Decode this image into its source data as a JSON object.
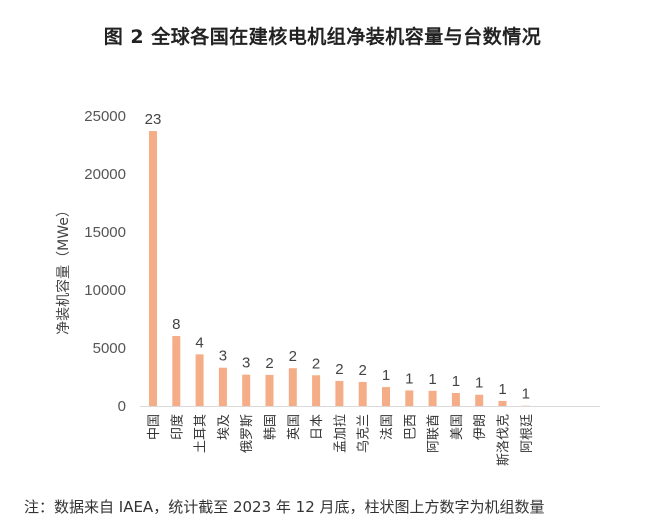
{
  "page": {
    "title": "图 2 全球各国在建核电机组净装机容量与台数情况",
    "note": "注：数据来自 IAEA，统计截至 2023 年 12 月底，柱状图上方数字为机组数量"
  },
  "chart_data": {
    "type": "bar",
    "title": "图 2 全球各国在建核电机组净装机容量与台数情况",
    "xlabel": "",
    "ylabel": "净装机容量（MWe）",
    "ylim": [
      0,
      25000
    ],
    "yticks": [
      0,
      5000,
      10000,
      15000,
      20000,
      25000
    ],
    "grid": false,
    "legend": "none",
    "categories": [
      "中国",
      "印度",
      "土耳其",
      "埃及",
      "俄罗斯",
      "韩国",
      "英国",
      "日本",
      "孟加拉",
      "乌克兰",
      "法国",
      "巴西",
      "阿联酋",
      "美国",
      "伊朗",
      "斯洛伐克",
      "阿根廷"
    ],
    "values": [
      23700,
      6030,
      4450,
      3300,
      2700,
      2680,
      3260,
      2650,
      2160,
      2070,
      1630,
      1340,
      1310,
      1120,
      970,
      440,
      25
    ],
    "data_labels": [
      "23",
      "8",
      "4",
      "3",
      "3",
      "2",
      "2",
      "2",
      "2",
      "2",
      "1",
      "1",
      "1",
      "1",
      "1",
      "1",
      "1"
    ],
    "bar_color": "#F4AD86"
  }
}
